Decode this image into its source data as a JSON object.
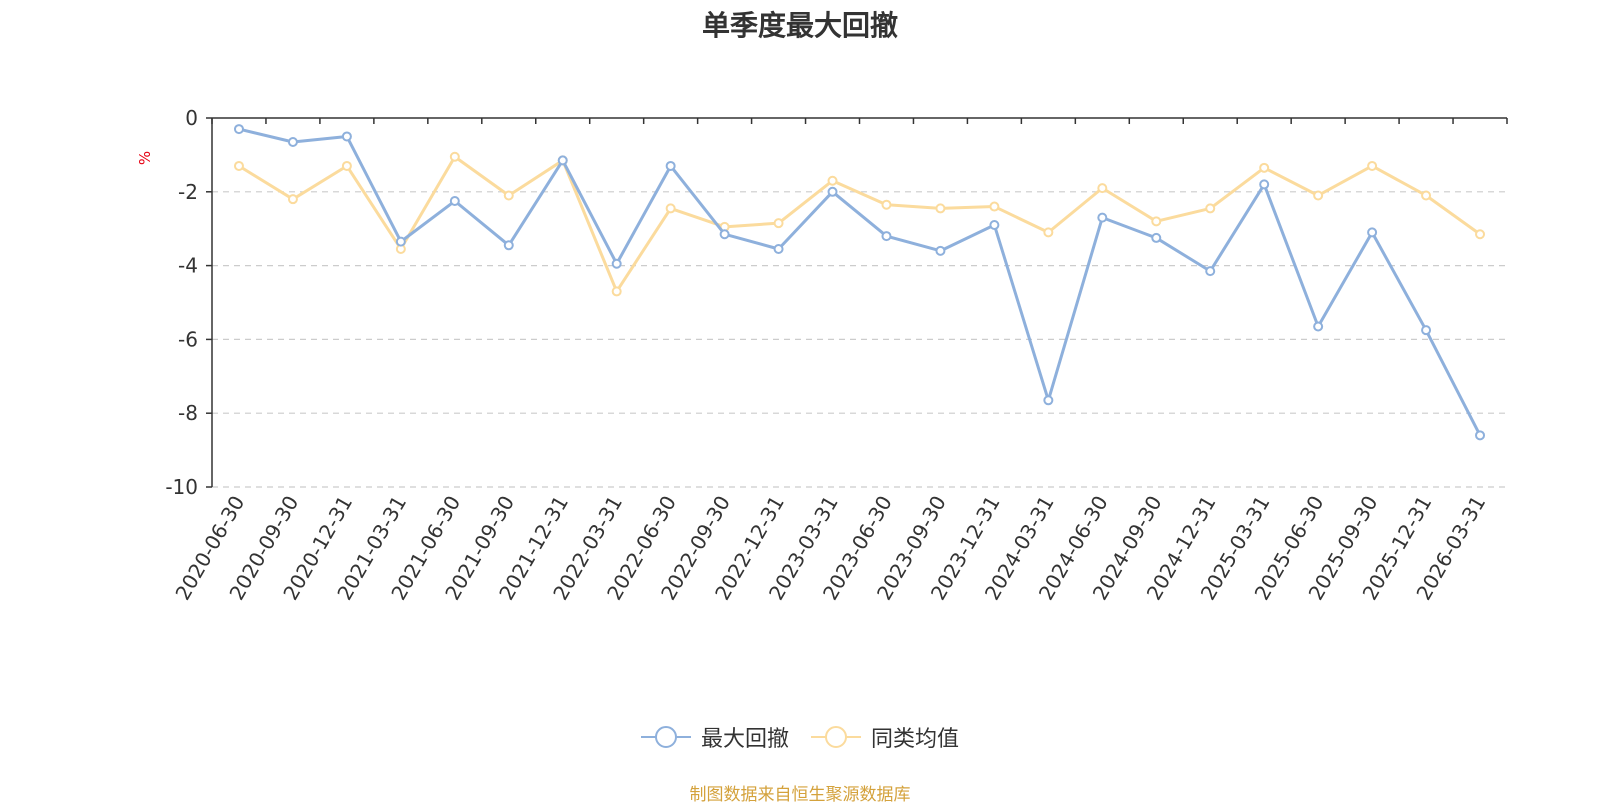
{
  "chart_data": {
    "type": "line",
    "title": "单季度最大回撤",
    "ylabel": "%",
    "ylim": [
      -10,
      0
    ],
    "yticks": [
      0,
      -2,
      -4,
      -6,
      -8,
      -10
    ],
    "grid": true,
    "legend_position": "bottom-center",
    "x": [
      "2020-06-30",
      "2020-09-30",
      "2020-12-31",
      "2021-03-31",
      "2021-06-30",
      "2021-09-30",
      "2021-12-31",
      "2022-03-31",
      "2022-06-30",
      "2022-09-30",
      "2022-12-31",
      "2023-03-31",
      "2023-06-30",
      "2023-09-30",
      "2023-12-31",
      "2024-03-31",
      "2024-06-30",
      "2024-09-30",
      "2024-12-31",
      "2025-03-31",
      "2025-06-30",
      "2025-09-30",
      "2025-12-31",
      "2026-03-31"
    ],
    "series": [
      {
        "name": "最大回撤",
        "color": "#8eb0dc",
        "values": [
          -0.3,
          -0.65,
          -0.5,
          -3.35,
          -2.25,
          -3.45,
          -1.15,
          -3.95,
          -1.3,
          -3.15,
          -3.55,
          -2.0,
          -3.2,
          -3.6,
          -2.9,
          -7.65,
          -2.7,
          -3.25,
          -4.15,
          -1.8,
          -5.65,
          -3.1,
          -5.75,
          -8.6
        ]
      },
      {
        "name": "同类均值",
        "color": "#fbdb9d",
        "values": [
          -1.3,
          -2.2,
          -1.3,
          -3.55,
          -1.05,
          -2.1,
          -1.15,
          -4.7,
          -2.45,
          -2.95,
          -2.85,
          -1.7,
          -2.35,
          -2.45,
          -2.4,
          -3.1,
          -1.9,
          -2.8,
          -2.45,
          -1.35,
          -2.1,
          -1.3,
          -2.1,
          -3.15
        ]
      }
    ]
  },
  "footer": {
    "source_note": "制图数据来自恒生聚源数据库",
    "source_color": "#d4a23c"
  },
  "colors": {
    "axis": "#333333",
    "grid": "#cccccc",
    "ylabel": "#e60012"
  }
}
